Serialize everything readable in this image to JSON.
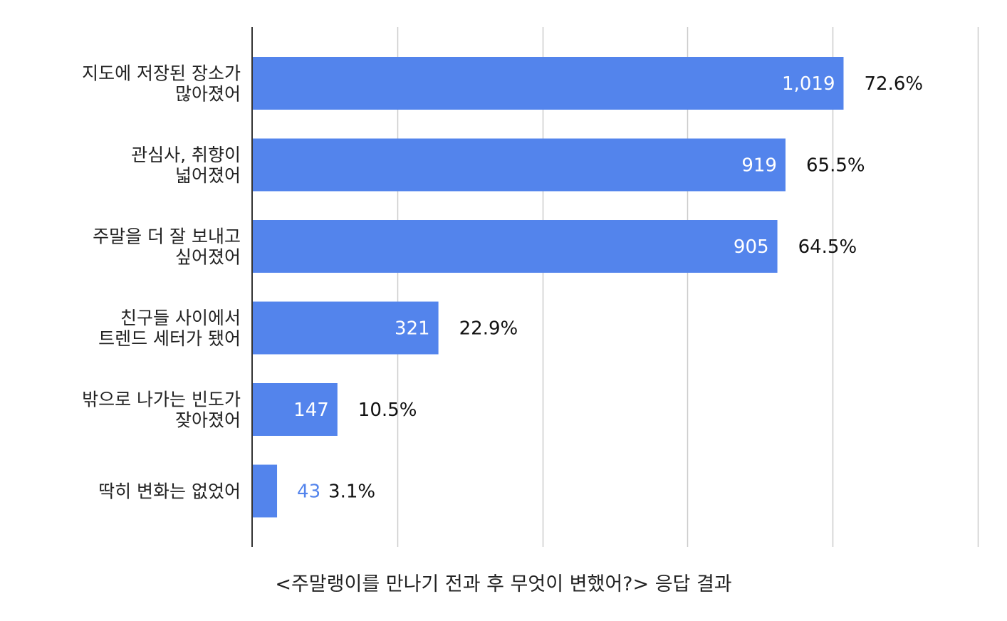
{
  "caption": "<주말랭이를 만나기 전과 후 무엇이 변했어?> 응답 결과",
  "colors": {
    "bar": "#5384ec",
    "grid": "#cccccc",
    "axis": "#333333"
  },
  "chart_data": {
    "type": "bar",
    "orientation": "horizontal",
    "title": "",
    "xlabel": "",
    "ylabel": "",
    "xlim": [
      0,
      1250
    ],
    "grid": true,
    "categories": [
      [
        "지도에 저장된 장소가",
        "많아졌어"
      ],
      [
        "관심사, 취향이",
        "넓어졌어"
      ],
      [
        "주말을 더 잘 보내고",
        "싶어졌어"
      ],
      [
        "친구들 사이에서",
        "트렌드 세터가 됐어"
      ],
      [
        "밖으로 나가는 빈도가",
        "잦아졌어"
      ],
      [
        "딱히 변화는 없었어"
      ]
    ],
    "values": [
      1019,
      919,
      905,
      321,
      147,
      43
    ],
    "value_labels": [
      "1,019",
      "919",
      "905",
      "321",
      "147",
      "43"
    ],
    "percent_labels": [
      "72.6%",
      "65.5%",
      "64.5%",
      "22.9%",
      "10.5%",
      "3.1%"
    ]
  }
}
